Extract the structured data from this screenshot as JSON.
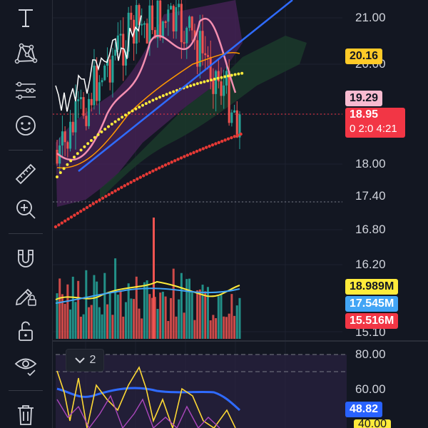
{
  "toolbar": {
    "tools": [
      {
        "name": "text-tool",
        "icon": "text-icon"
      },
      {
        "name": "pattern-tool",
        "icon": "xabcd-pattern-icon"
      },
      {
        "name": "prediction-tool",
        "icon": "forecast-icon"
      },
      {
        "name": "emoji-tool",
        "icon": "smiley-icon"
      },
      {
        "name": "measure-tool",
        "icon": "ruler-icon"
      },
      {
        "name": "zoom-tool",
        "icon": "zoom-in-icon"
      },
      {
        "name": "magnet-tool",
        "icon": "magnet-icon"
      },
      {
        "name": "lock-drawing-tool",
        "icon": "pencil-lock-icon"
      },
      {
        "name": "lock-all-tool",
        "icon": "unlock-icon"
      },
      {
        "name": "visibility-tool",
        "icon": "eye-icon"
      },
      {
        "name": "delete-tool",
        "icon": "trash-icon"
      }
    ]
  },
  "price_axis": {
    "labels": [
      "21.00",
      "20.00",
      "18.00",
      "17.40",
      "16.80",
      "16.20",
      "15.10"
    ]
  },
  "tags": {
    "ma_value": "20.16",
    "prev_price": "19.29",
    "last_price": "18.95",
    "countdown": "0 2:0 4:21",
    "vol_yellow": "18.989M",
    "vol_blue": "17.545M",
    "vol_red": "15.516M",
    "osc_blue": "48.82"
  },
  "osc_axis": {
    "labels": [
      "80.00",
      "60.00",
      "40.00"
    ]
  },
  "pane_toggle": {
    "count": "2"
  },
  "colors": {
    "background": "#131722",
    "up": "#26a69a",
    "down": "#ef5350",
    "ma_yellow": "#ffeb3b",
    "ma_blue": "#2962ff",
    "tag_orange": "#ffca28",
    "tag_pink": "#f8bbd0",
    "tag_red": "#f23645",
    "tag_blue": "#2962ff",
    "cloud_purple": "#4a235a",
    "cloud_green": "#1b3a2a"
  }
}
